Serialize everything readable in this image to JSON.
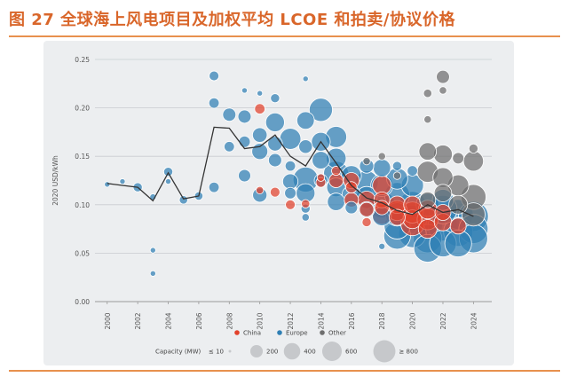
{
  "figure_title": "图 27 全球海上风电项目及加权平均 LCOE 和拍卖/协议价格",
  "colors": {
    "china": "#e2412b",
    "europe": "#2f7fb4",
    "other": "#6e6e6e",
    "line": "#333333",
    "rule": "#e8914e",
    "title": "#d9662a",
    "panel": "#eceef0"
  },
  "chart_data": {
    "type": "scatter",
    "ylabel": "2020 USD/kWh",
    "xlim": [
      1999.2,
      2025.2
    ],
    "ylim": [
      0,
      0.25
    ],
    "yticks": [
      "0.00",
      "0.05",
      "0.10",
      "0.15",
      "0.20",
      "0.25"
    ],
    "ytick_values": [
      0,
      0.05,
      0.1,
      0.15,
      0.2,
      0.25
    ],
    "xticks": [
      "2000",
      "2002",
      "2004",
      "2006",
      "2008",
      "2010",
      "2012",
      "2014",
      "2016",
      "2018",
      "2020",
      "2022",
      "2024"
    ],
    "xtick_values": [
      2000,
      2002,
      2004,
      2006,
      2008,
      2010,
      2012,
      2014,
      2016,
      2018,
      2020,
      2022,
      2024
    ],
    "legend_series": [
      {
        "name": "China",
        "color": "#e2412b"
      },
      {
        "name": "Europe",
        "color": "#2f7fb4"
      },
      {
        "name": "Other",
        "color": "#6e6e6e"
      }
    ],
    "size_legend": {
      "title": "Capacity (MW)",
      "items": [
        {
          "label": "≤ 10",
          "mw": 10
        },
        {
          "label": "200",
          "mw": 200
        },
        {
          "label": "400",
          "mw": 400
        },
        {
          "label": "600",
          "mw": 600
        },
        {
          "label": "≥ 800",
          "mw": 800
        }
      ]
    },
    "weighted_average": {
      "x": [
        2000,
        2001,
        2002,
        2003,
        2004,
        2005,
        2006,
        2007,
        2008,
        2009,
        2010,
        2011,
        2012,
        2013,
        2014,
        2015,
        2016,
        2017,
        2018,
        2019,
        2020,
        2021,
        2022,
        2023,
        2024
      ],
      "y": [
        0.122,
        0.12,
        0.118,
        0.104,
        0.133,
        0.106,
        0.109,
        0.18,
        0.179,
        0.158,
        0.16,
        0.172,
        0.15,
        0.14,
        0.165,
        0.143,
        0.12,
        0.107,
        0.102,
        0.094,
        0.09,
        0.1,
        0.092,
        0.095,
        0.088
      ]
    },
    "points": [
      {
        "s": "Europe",
        "x": 2000,
        "y": 0.121,
        "mw": 5
      },
      {
        "s": "Europe",
        "x": 2001,
        "y": 0.124,
        "mw": 5
      },
      {
        "s": "Europe",
        "x": 2002,
        "y": 0.118,
        "mw": 40
      },
      {
        "s": "Europe",
        "x": 2003,
        "y": 0.108,
        "mw": 10
      },
      {
        "s": "Europe",
        "x": 2003,
        "y": 0.053,
        "mw": 5
      },
      {
        "s": "Europe",
        "x": 2003,
        "y": 0.029,
        "mw": 5
      },
      {
        "s": "Europe",
        "x": 2004,
        "y": 0.134,
        "mw": 40
      },
      {
        "s": "Europe",
        "x": 2004,
        "y": 0.124,
        "mw": 5
      },
      {
        "s": "Europe",
        "x": 2005,
        "y": 0.105,
        "mw": 30
      },
      {
        "s": "Europe",
        "x": 2006,
        "y": 0.109,
        "mw": 30
      },
      {
        "s": "Europe",
        "x": 2007,
        "y": 0.233,
        "mw": 50
      },
      {
        "s": "Europe",
        "x": 2007,
        "y": 0.205,
        "mw": 60
      },
      {
        "s": "Europe",
        "x": 2007,
        "y": 0.118,
        "mw": 60
      },
      {
        "s": "Europe",
        "x": 2008,
        "y": 0.193,
        "mw": 120
      },
      {
        "s": "Europe",
        "x": 2008,
        "y": 0.16,
        "mw": 60
      },
      {
        "s": "Europe",
        "x": 2009,
        "y": 0.218,
        "mw": 5
      },
      {
        "s": "Europe",
        "x": 2009,
        "y": 0.191,
        "mw": 120
      },
      {
        "s": "Europe",
        "x": 2009,
        "y": 0.165,
        "mw": 80
      },
      {
        "s": "Europe",
        "x": 2009,
        "y": 0.13,
        "mw": 100
      },
      {
        "s": "Europe",
        "x": 2010,
        "y": 0.215,
        "mw": 5
      },
      {
        "s": "Europe",
        "x": 2010,
        "y": 0.172,
        "mw": 160
      },
      {
        "s": "Europe",
        "x": 2010,
        "y": 0.155,
        "mw": 200
      },
      {
        "s": "Europe",
        "x": 2010,
        "y": 0.11,
        "mw": 150
      },
      {
        "s": "China",
        "x": 2010,
        "y": 0.199,
        "mw": 60
      },
      {
        "s": "China",
        "x": 2010,
        "y": 0.115,
        "mw": 20
      },
      {
        "s": "Europe",
        "x": 2011,
        "y": 0.21,
        "mw": 40
      },
      {
        "s": "Europe",
        "x": 2011,
        "y": 0.185,
        "mw": 300
      },
      {
        "s": "Europe",
        "x": 2011,
        "y": 0.163,
        "mw": 160
      },
      {
        "s": "Europe",
        "x": 2011,
        "y": 0.146,
        "mw": 120
      },
      {
        "s": "China",
        "x": 2011,
        "y": 0.113,
        "mw": 50
      },
      {
        "s": "Europe",
        "x": 2012,
        "y": 0.168,
        "mw": 400
      },
      {
        "s": "Europe",
        "x": 2012,
        "y": 0.14,
        "mw": 60
      },
      {
        "s": "Europe",
        "x": 2012,
        "y": 0.124,
        "mw": 180
      },
      {
        "s": "Europe",
        "x": 2012,
        "y": 0.112,
        "mw": 80
      },
      {
        "s": "China",
        "x": 2012,
        "y": 0.1,
        "mw": 50
      },
      {
        "s": "Europe",
        "x": 2013,
        "y": 0.23,
        "mw": 5
      },
      {
        "s": "Europe",
        "x": 2013,
        "y": 0.187,
        "mw": 250
      },
      {
        "s": "Europe",
        "x": 2013,
        "y": 0.16,
        "mw": 130
      },
      {
        "s": "Europe",
        "x": 2013,
        "y": 0.126,
        "mw": 600
      },
      {
        "s": "Europe",
        "x": 2013,
        "y": 0.112,
        "mw": 300
      },
      {
        "s": "Europe",
        "x": 2013,
        "y": 0.096,
        "mw": 40
      },
      {
        "s": "Europe",
        "x": 2013,
        "y": 0.087,
        "mw": 20
      },
      {
        "s": "China",
        "x": 2013,
        "y": 0.101,
        "mw": 30
      },
      {
        "s": "Europe",
        "x": 2014,
        "y": 0.198,
        "mw": 500
      },
      {
        "s": "Europe",
        "x": 2014,
        "y": 0.165,
        "mw": 300
      },
      {
        "s": "Europe",
        "x": 2014,
        "y": 0.146,
        "mw": 250
      },
      {
        "s": "Europe",
        "x": 2014,
        "y": 0.125,
        "mw": 120
      },
      {
        "s": "China",
        "x": 2014,
        "y": 0.123,
        "mw": 50
      },
      {
        "s": "China",
        "x": 2014,
        "y": 0.128,
        "mw": 20
      },
      {
        "s": "Europe",
        "x": 2015,
        "y": 0.17,
        "mw": 400
      },
      {
        "s": "Europe",
        "x": 2015,
        "y": 0.148,
        "mw": 350
      },
      {
        "s": "Europe",
        "x": 2015,
        "y": 0.132,
        "mw": 600
      },
      {
        "s": "Europe",
        "x": 2015,
        "y": 0.118,
        "mw": 300
      },
      {
        "s": "Europe",
        "x": 2015,
        "y": 0.103,
        "mw": 250
      },
      {
        "s": "China",
        "x": 2015,
        "y": 0.125,
        "mw": 150
      },
      {
        "s": "China",
        "x": 2015,
        "y": 0.135,
        "mw": 40
      },
      {
        "s": "Europe",
        "x": 2016,
        "y": 0.13,
        "mw": 350
      },
      {
        "s": "Europe",
        "x": 2016,
        "y": 0.11,
        "mw": 300
      },
      {
        "s": "Europe",
        "x": 2016,
        "y": 0.097,
        "mw": 100
      },
      {
        "s": "China",
        "x": 2016,
        "y": 0.125,
        "mw": 200
      },
      {
        "s": "China",
        "x": 2016,
        "y": 0.105,
        "mw": 150
      },
      {
        "s": "China",
        "x": 2016,
        "y": 0.118,
        "mw": 80
      },
      {
        "s": "Europe",
        "x": 2017,
        "y": 0.14,
        "mw": 150
      },
      {
        "s": "Europe",
        "x": 2017,
        "y": 0.123,
        "mw": 500
      },
      {
        "s": "Europe",
        "x": 2017,
        "y": 0.108,
        "mw": 400
      },
      {
        "s": "Europe",
        "x": 2017,
        "y": 0.095,
        "mw": 200
      },
      {
        "s": "China",
        "x": 2017,
        "y": 0.105,
        "mw": 250
      },
      {
        "s": "China",
        "x": 2017,
        "y": 0.095,
        "mw": 150
      },
      {
        "s": "China",
        "x": 2017,
        "y": 0.082,
        "mw": 40
      },
      {
        "s": "Other",
        "x": 2017,
        "y": 0.145,
        "mw": 20
      },
      {
        "s": "Europe",
        "x": 2018,
        "y": 0.138,
        "mw": 250
      },
      {
        "s": "Europe",
        "x": 2018,
        "y": 0.12,
        "mw": 450
      },
      {
        "s": "Europe",
        "x": 2018,
        "y": 0.1,
        "mw": 700
      },
      {
        "s": "Europe",
        "x": 2018,
        "y": 0.088,
        "mw": 300
      },
      {
        "s": "Europe",
        "x": 2018,
        "y": 0.057,
        "mw": 10
      },
      {
        "s": "China",
        "x": 2018,
        "y": 0.12,
        "mw": 300
      },
      {
        "s": "China",
        "x": 2018,
        "y": 0.105,
        "mw": 200
      },
      {
        "s": "China",
        "x": 2018,
        "y": 0.09,
        "mw": 350
      },
      {
        "s": "China",
        "x": 2018,
        "y": 0.097,
        "mw": 150
      },
      {
        "s": "Other",
        "x": 2018,
        "y": 0.15,
        "mw": 20
      },
      {
        "s": "Europe",
        "x": 2019,
        "y": 0.127,
        "mw": 400
      },
      {
        "s": "Europe",
        "x": 2019,
        "y": 0.11,
        "mw": 600
      },
      {
        "s": "Europe",
        "x": 2019,
        "y": 0.09,
        "mw": 500
      },
      {
        "s": "Europe",
        "x": 2019,
        "y": 0.078,
        "mw": 650
      },
      {
        "s": "Europe",
        "x": 2019,
        "y": 0.068,
        "mw": 700
      },
      {
        "s": "Europe",
        "x": 2019,
        "y": 0.14,
        "mw": 40
      },
      {
        "s": "China",
        "x": 2019,
        "y": 0.1,
        "mw": 250
      },
      {
        "s": "China",
        "x": 2019,
        "y": 0.087,
        "mw": 200
      },
      {
        "s": "China",
        "x": 2019,
        "y": 0.094,
        "mw": 350
      },
      {
        "s": "Other",
        "x": 2019,
        "y": 0.13,
        "mw": 20
      },
      {
        "s": "Europe",
        "x": 2020,
        "y": 0.12,
        "mw": 450
      },
      {
        "s": "Europe",
        "x": 2020,
        "y": 0.1,
        "mw": 700
      },
      {
        "s": "Europe",
        "x": 2020,
        "y": 0.085,
        "mw": 800
      },
      {
        "s": "Europe",
        "x": 2020,
        "y": 0.07,
        "mw": 750
      },
      {
        "s": "Europe",
        "x": 2020,
        "y": 0.135,
        "mw": 60
      },
      {
        "s": "China",
        "x": 2020,
        "y": 0.08,
        "mw": 500
      },
      {
        "s": "China",
        "x": 2020,
        "y": 0.092,
        "mw": 400
      },
      {
        "s": "China",
        "x": 2020,
        "y": 0.1,
        "mw": 250
      },
      {
        "s": "China",
        "x": 2020,
        "y": 0.085,
        "mw": 300
      },
      {
        "s": "Europe",
        "x": 2021,
        "y": 0.1,
        "mw": 500
      },
      {
        "s": "Europe",
        "x": 2021,
        "y": 0.08,
        "mw": 900
      },
      {
        "s": "Europe",
        "x": 2021,
        "y": 0.065,
        "mw": 800
      },
      {
        "s": "Europe",
        "x": 2021,
        "y": 0.055,
        "mw": 750
      },
      {
        "s": "China",
        "x": 2021,
        "y": 0.095,
        "mw": 300
      },
      {
        "s": "China",
        "x": 2021,
        "y": 0.085,
        "mw": 400
      },
      {
        "s": "China",
        "x": 2021,
        "y": 0.075,
        "mw": 300
      },
      {
        "s": "Other",
        "x": 2021,
        "y": 0.215,
        "mw": 30
      },
      {
        "s": "Other",
        "x": 2021,
        "y": 0.188,
        "mw": 20
      },
      {
        "s": "Other",
        "x": 2021,
        "y": 0.155,
        "mw": 250
      },
      {
        "s": "Other",
        "x": 2021,
        "y": 0.134,
        "mw": 400
      },
      {
        "s": "Other",
        "x": 2021,
        "y": 0.105,
        "mw": 200
      },
      {
        "s": "Europe",
        "x": 2022,
        "y": 0.095,
        "mw": 800
      },
      {
        "s": "Europe",
        "x": 2022,
        "y": 0.078,
        "mw": 900
      },
      {
        "s": "Europe",
        "x": 2022,
        "y": 0.06,
        "mw": 700
      },
      {
        "s": "Europe",
        "x": 2022,
        "y": 0.105,
        "mw": 400
      },
      {
        "s": "China",
        "x": 2022,
        "y": 0.082,
        "mw": 250
      },
      {
        "s": "China",
        "x": 2022,
        "y": 0.092,
        "mw": 200
      },
      {
        "s": "Other",
        "x": 2022,
        "y": 0.232,
        "mw": 120
      },
      {
        "s": "Other",
        "x": 2022,
        "y": 0.218,
        "mw": 20
      },
      {
        "s": "Other",
        "x": 2022,
        "y": 0.152,
        "mw": 300
      },
      {
        "s": "Other",
        "x": 2022,
        "y": 0.128,
        "mw": 350
      },
      {
        "s": "Other",
        "x": 2022,
        "y": 0.112,
        "mw": 250
      },
      {
        "s": "Europe",
        "x": 2023,
        "y": 0.09,
        "mw": 900
      },
      {
        "s": "Europe",
        "x": 2023,
        "y": 0.072,
        "mw": 850
      },
      {
        "s": "Europe",
        "x": 2023,
        "y": 0.06,
        "mw": 700
      },
      {
        "s": "China",
        "x": 2023,
        "y": 0.078,
        "mw": 200
      },
      {
        "s": "Other",
        "x": 2023,
        "y": 0.148,
        "mw": 80
      },
      {
        "s": "Other",
        "x": 2023,
        "y": 0.12,
        "mw": 400
      },
      {
        "s": "Other",
        "x": 2023,
        "y": 0.1,
        "mw": 300
      },
      {
        "s": "Europe",
        "x": 2024,
        "y": 0.088,
        "mw": 900
      },
      {
        "s": "Europe",
        "x": 2024,
        "y": 0.075,
        "mw": 850
      },
      {
        "s": "Europe",
        "x": 2024,
        "y": 0.065,
        "mw": 800
      },
      {
        "s": "Other",
        "x": 2024,
        "y": 0.158,
        "mw": 40
      },
      {
        "s": "Other",
        "x": 2024,
        "y": 0.145,
        "mw": 350
      },
      {
        "s": "Other",
        "x": 2024,
        "y": 0.108,
        "mw": 600
      },
      {
        "s": "Other",
        "x": 2024,
        "y": 0.09,
        "mw": 500
      }
    ]
  }
}
